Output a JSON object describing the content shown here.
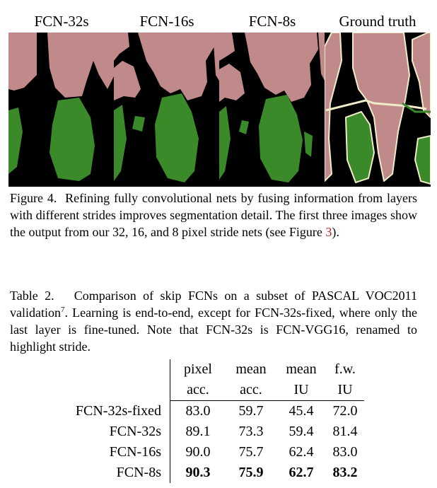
{
  "figure": {
    "panels": [
      {
        "title": "FCN-32s"
      },
      {
        "title": "FCN-16s"
      },
      {
        "title": "FCN-8s"
      },
      {
        "title": "Ground truth"
      }
    ],
    "colors": {
      "background": "#000000",
      "person": "#c08a8a",
      "bicycle": "#3a8a2a",
      "boundary": "#f0ecc8"
    },
    "caption_label": "Figure 4.",
    "caption_text": "Refining fully convolutional nets by fusing information from layers with different strides improves segmentation detail. The first three images show the output from our 32, 16, and 8 pixel stride nets (see Figure ",
    "caption_ref": "3",
    "caption_end": ")."
  },
  "table": {
    "caption_label": "Table 2.",
    "caption_text_1": "Comparison of skip FCNs on a subset of PASCAL VOC2011 validation",
    "footnote_mark": "7",
    "caption_text_2": ". Learning is end-to-end, except for FCN-32s-fixed, where only the last layer is fine-tuned. Note that FCN-32s is FCN-VGG16, renamed to highlight stride.",
    "header_top": [
      "pixel",
      "mean",
      "mean",
      "f.w."
    ],
    "header_bottom": [
      "acc.",
      "acc.",
      "IU",
      "IU"
    ],
    "rows": [
      {
        "name": "FCN-32s-fixed",
        "values": [
          "83.0",
          "59.7",
          "45.4",
          "72.0"
        ],
        "bold": false
      },
      {
        "name": "FCN-32s",
        "values": [
          "89.1",
          "73.3",
          "59.4",
          "81.4"
        ],
        "bold": false
      },
      {
        "name": "FCN-16s",
        "values": [
          "90.0",
          "75.7",
          "62.4",
          "83.0"
        ],
        "bold": false
      },
      {
        "name": "FCN-8s",
        "values": [
          "90.3",
          "75.9",
          "62.7",
          "83.2"
        ],
        "bold": true
      }
    ]
  }
}
